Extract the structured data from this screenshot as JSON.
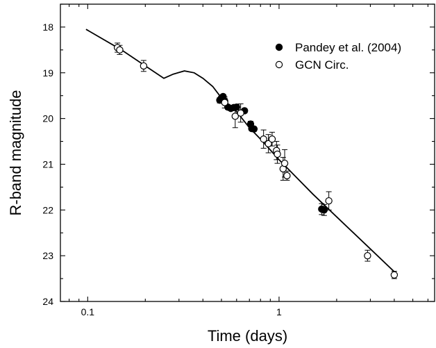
{
  "chart_data": {
    "type": "scatter",
    "xlabel": "Time (days)",
    "ylabel": "R-band magnitude",
    "x_scale": "log",
    "xlim": [
      0.072,
      6.5
    ],
    "ylim": [
      24,
      17.5
    ],
    "y_inverted": true,
    "x_ticks": [
      {
        "value": 0.1,
        "label": "0.1"
      },
      {
        "value": 1,
        "label": "1"
      }
    ],
    "y_ticks": [
      {
        "value": 18,
        "label": "18"
      },
      {
        "value": 19,
        "label": "19"
      },
      {
        "value": 20,
        "label": "20"
      },
      {
        "value": 21,
        "label": "21"
      },
      {
        "value": 22,
        "label": "22"
      },
      {
        "value": 23,
        "label": "23"
      },
      {
        "value": 24,
        "label": "24"
      }
    ],
    "legend_position": "top-right",
    "series": [
      {
        "name": "Pandey et al. (2004)",
        "marker": "filled-circle",
        "points": [
          {
            "x": 0.49,
            "y": 19.6,
            "err": 0.06
          },
          {
            "x": 0.5,
            "y": 19.55,
            "err": 0.05
          },
          {
            "x": 0.51,
            "y": 19.52,
            "err": 0.05
          },
          {
            "x": 0.52,
            "y": 19.62,
            "err": 0.06
          },
          {
            "x": 0.54,
            "y": 19.75,
            "err": 0.05
          },
          {
            "x": 0.56,
            "y": 19.78,
            "err": 0.05
          },
          {
            "x": 0.58,
            "y": 19.76,
            "err": 0.05
          },
          {
            "x": 0.6,
            "y": 19.75,
            "err": 0.05
          },
          {
            "x": 0.66,
            "y": 19.83,
            "err": 0.05
          },
          {
            "x": 0.71,
            "y": 20.12,
            "err": 0.06
          },
          {
            "x": 0.72,
            "y": 20.22,
            "err": 0.05
          },
          {
            "x": 0.74,
            "y": 20.23,
            "err": 0.05
          },
          {
            "x": 1.67,
            "y": 21.98,
            "err": 0.12
          },
          {
            "x": 1.72,
            "y": 22.0,
            "err": 0.12
          }
        ]
      },
      {
        "name": "GCN Circ.",
        "marker": "open-circle",
        "points": [
          {
            "x": 0.143,
            "y": 18.45,
            "err": 0.1
          },
          {
            "x": 0.147,
            "y": 18.5,
            "err": 0.1
          },
          {
            "x": 0.196,
            "y": 18.85,
            "err": 0.12
          },
          {
            "x": 0.52,
            "y": 19.65,
            "err": 0.12
          },
          {
            "x": 0.59,
            "y": 19.95,
            "err": 0.25
          },
          {
            "x": 0.63,
            "y": 19.88,
            "err": 0.2
          },
          {
            "x": 0.83,
            "y": 20.45,
            "err": 0.2
          },
          {
            "x": 0.88,
            "y": 20.55,
            "err": 0.2
          },
          {
            "x": 0.92,
            "y": 20.45,
            "err": 0.15
          },
          {
            "x": 0.97,
            "y": 20.7,
            "err": 0.2
          },
          {
            "x": 0.98,
            "y": 20.78,
            "err": 0.2
          },
          {
            "x": 1.05,
            "y": 21.1,
            "err": 0.25
          },
          {
            "x": 1.07,
            "y": 20.98,
            "err": 0.3
          },
          {
            "x": 1.1,
            "y": 21.25,
            "err": 0.1
          },
          {
            "x": 1.82,
            "y": 21.8,
            "err": 0.2
          },
          {
            "x": 2.9,
            "y": 23.0,
            "err": 0.12
          },
          {
            "x": 4.0,
            "y": 23.42,
            "err": 0.08
          }
        ]
      }
    ],
    "model_curve": [
      {
        "x": 0.098,
        "y": 18.05
      },
      {
        "x": 0.15,
        "y": 18.5
      },
      {
        "x": 0.2,
        "y": 18.85
      },
      {
        "x": 0.25,
        "y": 19.12
      },
      {
        "x": 0.28,
        "y": 19.03
      },
      {
        "x": 0.32,
        "y": 18.96
      },
      {
        "x": 0.36,
        "y": 19.0
      },
      {
        "x": 0.4,
        "y": 19.12
      },
      {
        "x": 0.45,
        "y": 19.3
      },
      {
        "x": 0.5,
        "y": 19.55
      },
      {
        "x": 0.6,
        "y": 19.85
      },
      {
        "x": 0.7,
        "y": 20.2
      },
      {
        "x": 0.8,
        "y": 20.45
      },
      {
        "x": 1.0,
        "y": 20.9
      },
      {
        "x": 1.5,
        "y": 21.65
      },
      {
        "x": 2.0,
        "y": 22.15
      },
      {
        "x": 3.0,
        "y": 22.85
      },
      {
        "x": 4.0,
        "y": 23.35
      }
    ]
  }
}
